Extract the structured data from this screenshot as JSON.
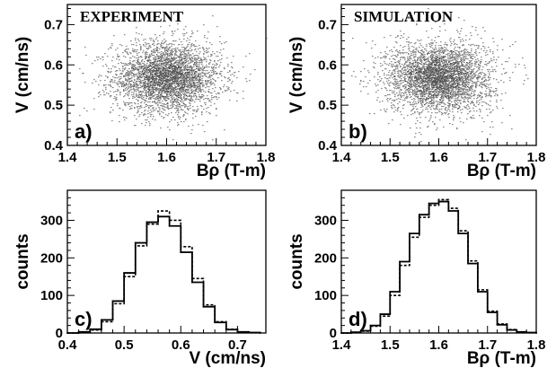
{
  "chart_data": [
    {
      "panel": "a)",
      "type": "scatter",
      "title": "EXPERIMENT",
      "xlabel": "Bρ (T-m)",
      "ylabel": "V (cm/ns)",
      "xlim": [
        1.4,
        1.8
      ],
      "ylim": [
        0.4,
        0.75
      ],
      "xticks": [
        1.4,
        1.5,
        1.6,
        1.7,
        1.8
      ],
      "yticks": [
        0.4,
        0.5,
        0.6,
        0.7
      ],
      "distribution": {
        "x_center": 1.6,
        "x_sigma": 0.055,
        "y_center": 0.57,
        "y_sigma": 0.045
      },
      "color": "#7a7a7a"
    },
    {
      "panel": "b)",
      "type": "scatter",
      "title": "SIMULATION",
      "xlabel": "Bρ (T-m)",
      "ylabel": "V (cm/ns)",
      "xlim": [
        1.4,
        1.8
      ],
      "ylim": [
        0.4,
        0.75
      ],
      "xticks": [
        1.4,
        1.5,
        1.6,
        1.7,
        1.8
      ],
      "yticks": [
        0.4,
        0.5,
        0.6,
        0.7
      ],
      "distribution": {
        "x_center": 1.6,
        "x_sigma": 0.055,
        "y_center": 0.57,
        "y_sigma": 0.045
      },
      "color": "#7a7a7a"
    },
    {
      "panel": "c)",
      "type": "line",
      "title": "",
      "xlabel": "V (cm/ns)",
      "ylabel": "counts",
      "xlim": [
        0.4,
        0.75
      ],
      "ylim": [
        0,
        380
      ],
      "xticks": [
        0.4,
        0.5,
        0.6,
        0.7
      ],
      "yticks": [
        0,
        100,
        200,
        300
      ],
      "series": [
        {
          "style": "solid",
          "x": [
            0.4,
            0.42,
            0.44,
            0.46,
            0.48,
            0.5,
            0.52,
            0.54,
            0.56,
            0.58,
            0.6,
            0.62,
            0.64,
            0.66,
            0.68,
            0.7,
            0.72,
            0.74
          ],
          "y": [
            0,
            3,
            10,
            35,
            85,
            160,
            240,
            295,
            310,
            285,
            215,
            135,
            70,
            28,
            9,
            3,
            1,
            0
          ]
        },
        {
          "style": "dashed",
          "x": [
            0.4,
            0.42,
            0.44,
            0.46,
            0.48,
            0.5,
            0.52,
            0.54,
            0.56,
            0.58,
            0.6,
            0.62,
            0.64,
            0.66,
            0.68,
            0.7,
            0.72,
            0.74
          ],
          "y": [
            0,
            2,
            8,
            30,
            78,
            150,
            232,
            290,
            325,
            300,
            230,
            145,
            75,
            30,
            10,
            3,
            1,
            0
          ]
        }
      ]
    },
    {
      "panel": "d)",
      "type": "line",
      "title": "",
      "xlabel": "Bρ (T-m)",
      "ylabel": "counts",
      "xlim": [
        1.4,
        1.8
      ],
      "ylim": [
        0,
        380
      ],
      "xticks": [
        1.4,
        1.5,
        1.6,
        1.7,
        1.8
      ],
      "yticks": [
        0,
        100,
        200,
        300
      ],
      "series": [
        {
          "style": "solid",
          "x": [
            1.4,
            1.42,
            1.44,
            1.46,
            1.48,
            1.5,
            1.52,
            1.54,
            1.56,
            1.58,
            1.6,
            1.62,
            1.64,
            1.66,
            1.68,
            1.7,
            1.72,
            1.74,
            1.76,
            1.78,
            1.8
          ],
          "y": [
            0,
            2,
            6,
            20,
            50,
            110,
            190,
            265,
            315,
            345,
            350,
            325,
            265,
            185,
            110,
            55,
            22,
            8,
            3,
            1,
            0
          ]
        },
        {
          "style": "dashed",
          "x": [
            1.4,
            1.42,
            1.44,
            1.46,
            1.48,
            1.5,
            1.52,
            1.54,
            1.56,
            1.58,
            1.6,
            1.62,
            1.64,
            1.66,
            1.68,
            1.7,
            1.72,
            1.74,
            1.76,
            1.78,
            1.8
          ],
          "y": [
            0,
            2,
            5,
            18,
            45,
            100,
            180,
            255,
            308,
            340,
            355,
            332,
            272,
            192,
            115,
            58,
            24,
            9,
            3,
            1,
            0
          ]
        }
      ]
    }
  ]
}
